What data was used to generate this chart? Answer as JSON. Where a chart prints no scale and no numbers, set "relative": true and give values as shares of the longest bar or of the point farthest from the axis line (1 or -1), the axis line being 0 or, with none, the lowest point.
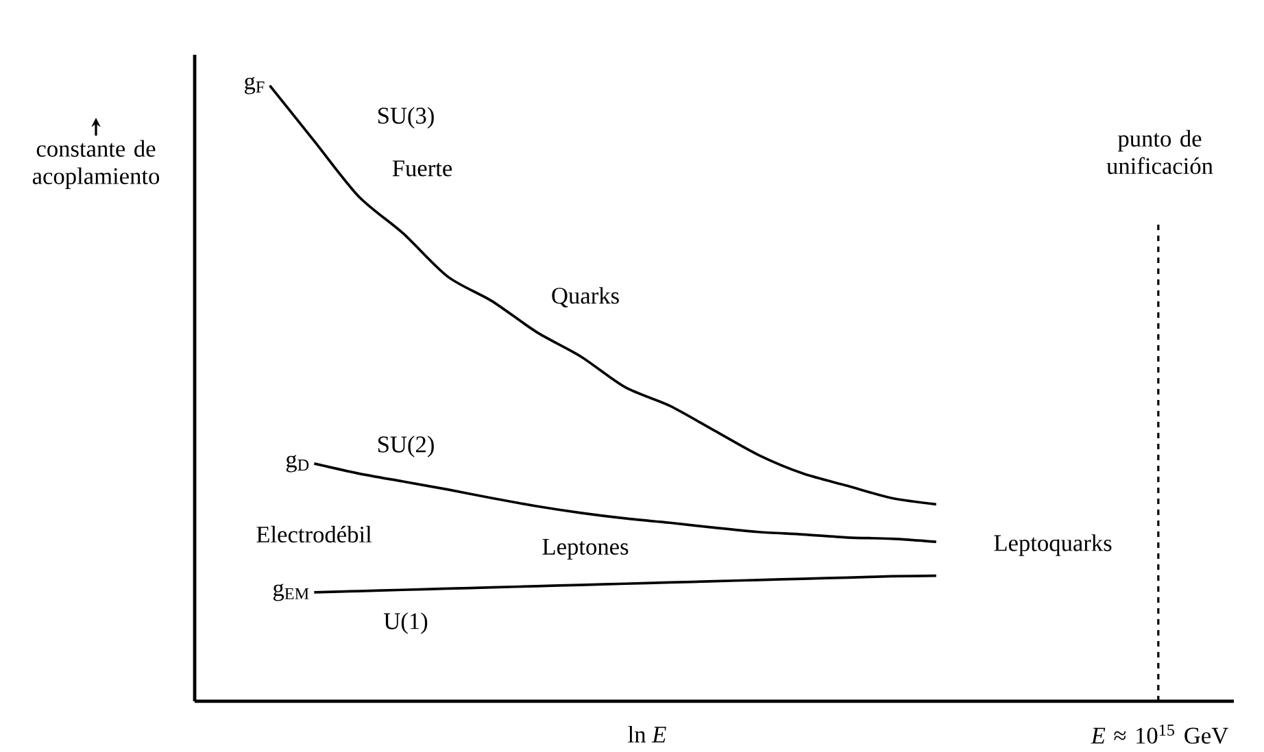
{
  "chart_data": {
    "type": "line",
    "relative": true,
    "xlabel": "ln *E*",
    "ylabel": "constante de acoplamiento",
    "line_style": "solid",
    "categories": [
      null,
      null,
      null,
      null,
      null,
      null,
      null,
      null,
      null,
      null,
      null,
      null,
      null,
      null,
      null,
      null,
      null,
      null,
      null,
      null,
      null
    ],
    "series": [
      {
        "name": "g$_{F}$",
        "color": "#000000",
        "values": [
          1.0,
          0.91,
          0.82,
          0.76,
          0.69,
          0.65,
          0.6,
          0.56,
          0.51,
          0.48,
          0.44,
          0.4,
          0.37,
          0.35,
          0.33,
          0.32,
          null,
          null,
          null,
          null,
          null
        ]
      },
      {
        "name": "g$_{D}$",
        "color": "#000000",
        "values": [
          null,
          0.386,
          0.37,
          0.357,
          0.344,
          0.33,
          0.317,
          0.306,
          0.297,
          0.29,
          0.282,
          0.275,
          0.271,
          0.266,
          0.264,
          0.259,
          null,
          null,
          null,
          null,
          null
        ]
      },
      {
        "name": "g$_{EM}$",
        "color": "#000000",
        "values": [
          null,
          0.177,
          0.179,
          0.181,
          0.183,
          0.185,
          0.187,
          0.189,
          0.191,
          0.193,
          0.195,
          0.197,
          0.199,
          0.201,
          0.203,
          0.204,
          null,
          null,
          null,
          null,
          null
        ]
      }
    ],
    "annotations": [
      "SU(3)",
      "Fuerte",
      "Quarks",
      "SU(2)",
      "Electrodébil",
      "Leptones",
      "U(1)",
      "Leptoquarks",
      "*E* ≈ 10$^{15}$ GeV",
      "punto de unificación"
    ]
  }
}
